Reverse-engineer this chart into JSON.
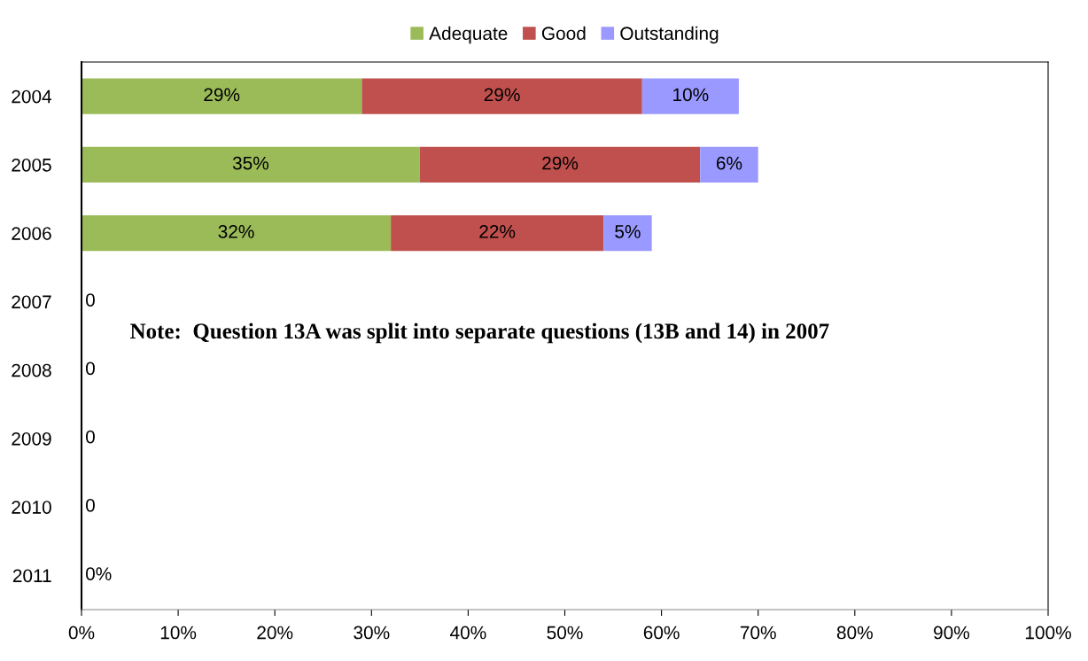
{
  "chart_data": {
    "type": "bar",
    "orientation": "horizontal",
    "stacked": true,
    "categories": [
      "2004",
      "2005",
      "2006",
      "2007",
      "2008",
      "2009",
      "2010",
      "2011"
    ],
    "series": [
      {
        "name": "Adequate",
        "color": "#9bbb59",
        "values": [
          29,
          35,
          32,
          0,
          0,
          0,
          0,
          0
        ],
        "value_labels": [
          "29%",
          "35%",
          "32%",
          "0",
          "0",
          "0",
          "0",
          "0%"
        ]
      },
      {
        "name": "Good",
        "color": "#c0504d",
        "values": [
          29,
          29,
          22,
          0,
          0,
          0,
          0,
          0
        ],
        "value_labels": [
          "29%",
          "29%",
          "22%",
          null,
          null,
          null,
          null,
          null
        ]
      },
      {
        "name": "Outstanding",
        "color": "#9999ff",
        "values": [
          10,
          6,
          5,
          0,
          0,
          0,
          0,
          0
        ],
        "value_labels": [
          "10%",
          "6%",
          "5%",
          null,
          null,
          null,
          null,
          null
        ]
      }
    ],
    "xlim": [
      0,
      100
    ],
    "xticks": [
      {
        "value": 0,
        "label": "0%"
      },
      {
        "value": 10,
        "label": "10%"
      },
      {
        "value": 20,
        "label": "20%"
      },
      {
        "value": 30,
        "label": "30%"
      },
      {
        "value": 40,
        "label": "40%"
      },
      {
        "value": 50,
        "label": "50%"
      },
      {
        "value": 60,
        "label": "60%"
      },
      {
        "value": 70,
        "label": "70%"
      },
      {
        "value": 80,
        "label": "80%"
      },
      {
        "value": 90,
        "label": "90%"
      },
      {
        "value": 100,
        "label": "100%"
      }
    ],
    "grid": false,
    "legend": "top",
    "annotations": [
      "Note:  Question 13A was split into separate questions (13B and 14) in 2007"
    ]
  }
}
